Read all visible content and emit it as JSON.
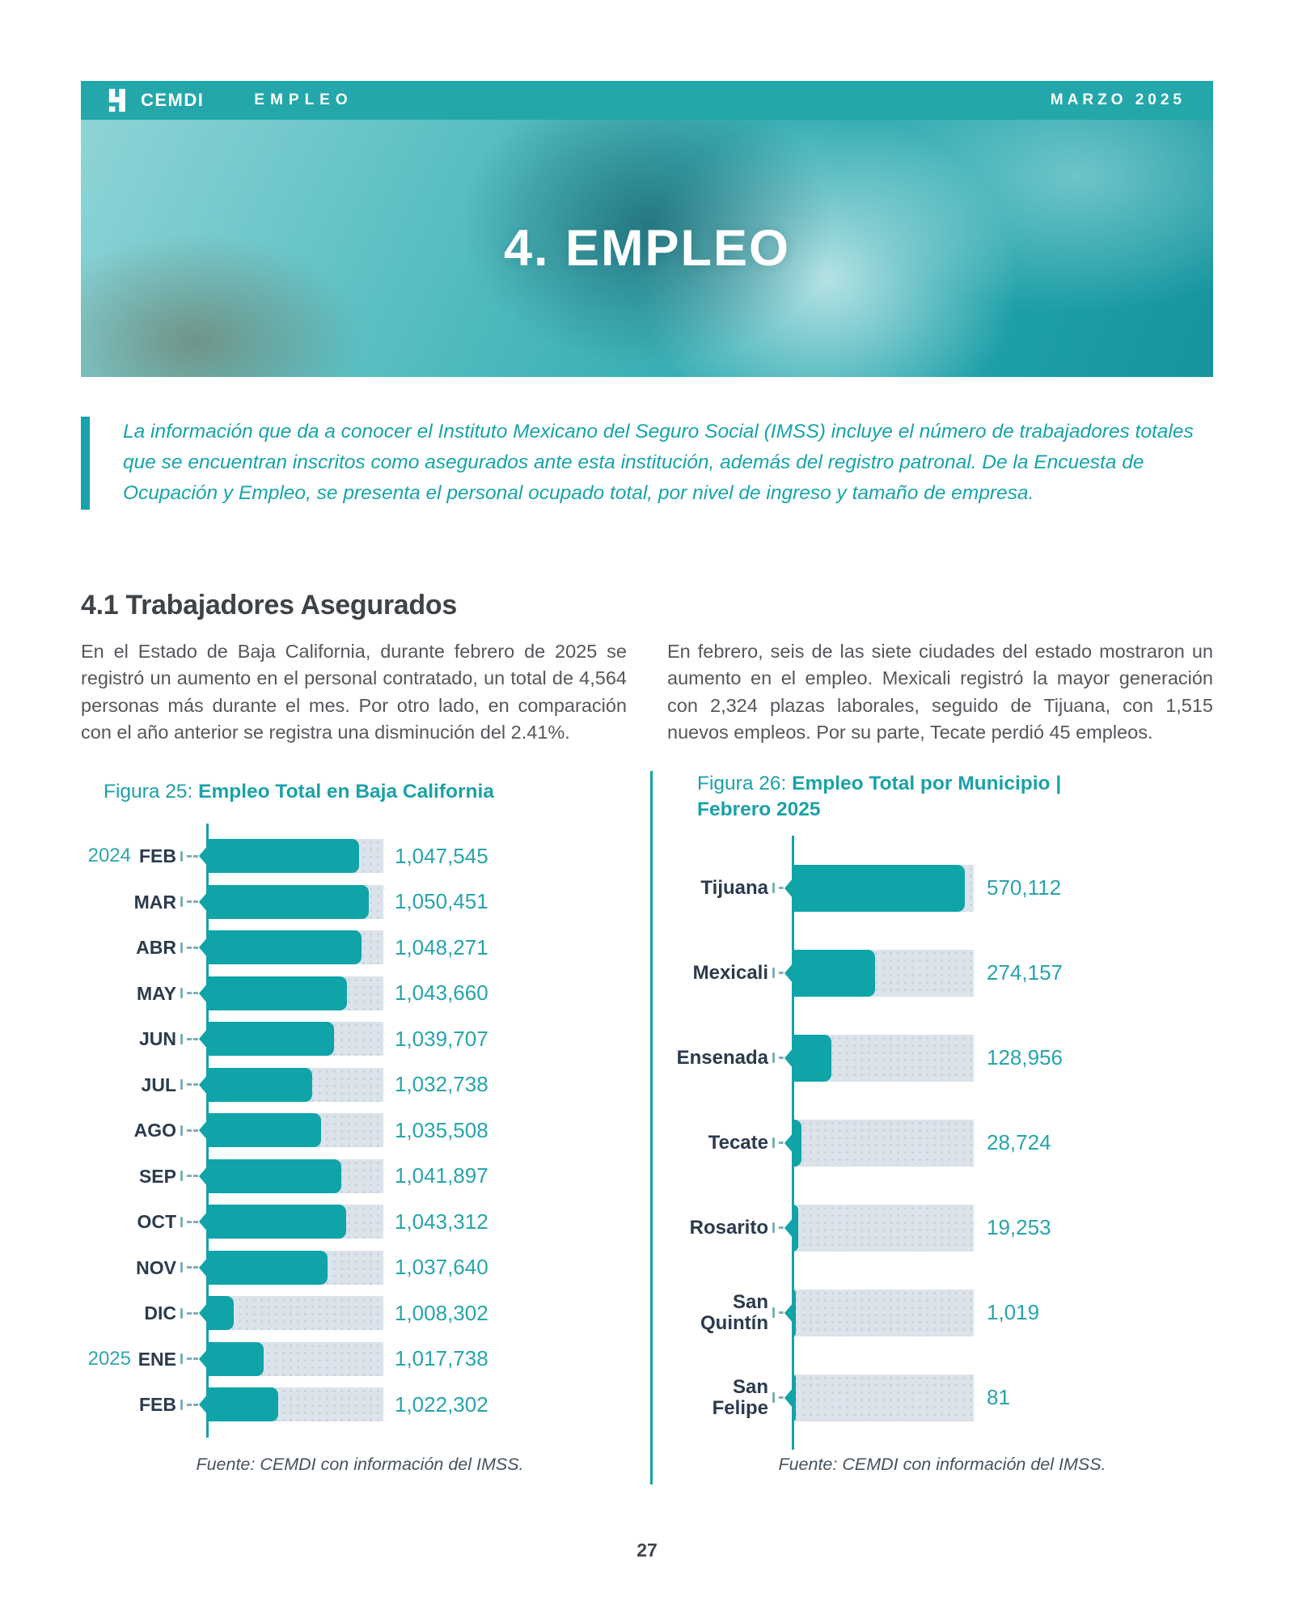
{
  "colors": {
    "accent": "#14A2A8",
    "header_band": "#23A7AA",
    "bar": "#0EA4A8",
    "bar_track": "#DCE3EB",
    "label_navy": "#2B3B4E",
    "value_teal": "#27A4AC",
    "body_text": "#54575B"
  },
  "header": {
    "brand": "CEMDI",
    "section": "EMPLEO",
    "issue": "MARZO 2025"
  },
  "hero": {
    "title": "4. EMPLEO"
  },
  "intro": {
    "text": "La información que da a conocer el Instituto Mexicano del Seguro Social (IMSS) incluye el número de trabajadores totales que se encuentran inscritos como asegurados ante esta institución, además del registro patronal. De la Encuesta de Ocupación y Empleo, se presenta el personal ocupado total, por nivel de ingreso y tamaño de empresa."
  },
  "section": {
    "heading": "4.1 Trabajadores Asegurados",
    "paragraph_left": "En el Estado de Baja California, durante febrero de 2025 se registró un aumento en el personal contratado, un total de 4,564 personas más durante el mes. Por otro lado, en comparación con el año anterior se registra una disminución del 2.41%.",
    "paragraph_right": "En febrero, seis de las siete ciudades del estado mostraron un aumento en el empleo. Mexicali registró la mayor generación con 2,324 plazas laborales, seguido de Tijuana, con 1,515 nuevos empleos. Por su parte, Tecate perdió 45 empleos."
  },
  "figura25": {
    "label": "Figura 25: ",
    "title_bold": "Empleo Total en Baja California",
    "source": "Fuente: CEMDI con información del IMSS.",
    "chart_data": {
      "type": "bar",
      "orientation": "horizontal",
      "title": "Empleo Total en Baja California",
      "categories": [
        "FEB",
        "MAR",
        "ABR",
        "MAY",
        "JUN",
        "JUL",
        "AGO",
        "SEP",
        "OCT",
        "NOV",
        "DIC",
        "ENE",
        "FEB"
      ],
      "year_markers": {
        "0": "2024",
        "11": "2025"
      },
      "values": [
        1047545,
        1050451,
        1048271,
        1043660,
        1039707,
        1032738,
        1035508,
        1041897,
        1043312,
        1037640,
        1008302,
        1017738,
        1022302
      ],
      "labels": [
        "1,047,545",
        "1,050,451",
        "1,048,271",
        "1,043,660",
        "1,039,707",
        "1,032,738",
        "1,035,508",
        "1,041,897",
        "1,043,312",
        "1,037,640",
        "1,008,302",
        "1,017,738",
        "1,022,302"
      ],
      "axis_min": 1000000,
      "axis_max": 1055000,
      "grid": false,
      "legend": false
    }
  },
  "figura26": {
    "label": "Figura 26: ",
    "title_bold": "Empleo Total por Municipio | Febrero 2025",
    "source": "Fuente: CEMDI con información del IMSS.",
    "chart_data": {
      "type": "bar",
      "orientation": "horizontal",
      "title": "Empleo Total por Municipio | Febrero 2025",
      "categories": [
        "Tijuana",
        "Mexicali",
        "Ensenada",
        "Tecate",
        "Rosarito",
        "San Quintín",
        "San Felipe"
      ],
      "values": [
        570112,
        274157,
        128956,
        28724,
        19253,
        1019,
        81
      ],
      "labels": [
        "570,112",
        "274,157",
        "128,956",
        "28,724",
        "19,253",
        "1,019",
        "81"
      ],
      "axis_min": 0,
      "axis_max": 600000,
      "grid": false,
      "legend": false
    }
  },
  "page": {
    "number": "27"
  }
}
